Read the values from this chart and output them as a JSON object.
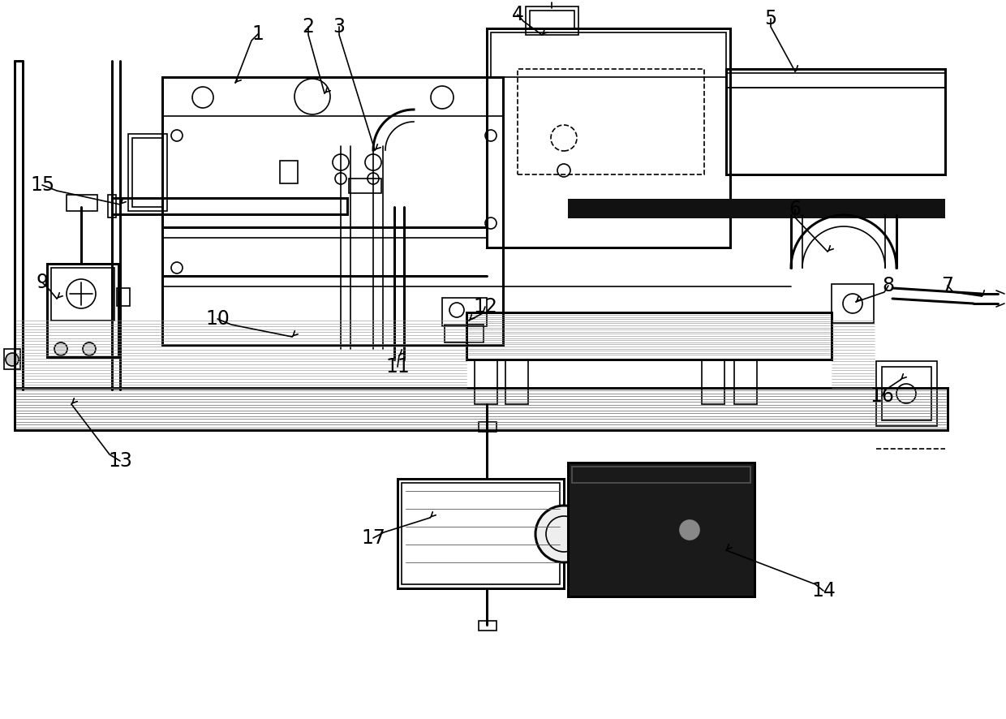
{
  "background_color": "#ffffff",
  "line_color": "#000000",
  "line_width": 1.2,
  "label_fontsize": 17
}
